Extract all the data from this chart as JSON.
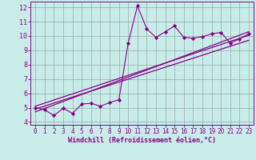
{
  "xlabel": "Windchill (Refroidissement éolien,°C)",
  "bg_color": "#c8ede8",
  "line_color": "#880088",
  "grid_color": "#99aaa8",
  "xlim": [
    -0.5,
    23.5
  ],
  "ylim": [
    3.8,
    12.4
  ],
  "xticks": [
    0,
    1,
    2,
    3,
    4,
    5,
    6,
    7,
    8,
    9,
    10,
    11,
    12,
    13,
    14,
    15,
    16,
    17,
    18,
    19,
    20,
    21,
    22,
    23
  ],
  "yticks": [
    4,
    5,
    6,
    7,
    8,
    9,
    10,
    11,
    12
  ],
  "jagged_x": [
    0,
    1,
    2,
    3,
    4,
    5,
    6,
    7,
    8,
    9,
    10,
    11,
    12,
    13,
    14,
    15,
    16,
    17,
    18,
    19,
    20,
    21,
    22,
    23
  ],
  "jagged_y": [
    5.0,
    4.85,
    4.45,
    4.95,
    4.6,
    5.25,
    5.3,
    5.1,
    5.35,
    5.55,
    9.5,
    12.1,
    10.5,
    9.9,
    10.3,
    10.7,
    9.9,
    9.85,
    9.95,
    10.15,
    10.25,
    9.5,
    9.8,
    10.15
  ],
  "line1_x": [
    0,
    23
  ],
  "line1_y": [
    4.7,
    10.3
  ],
  "line2_x": [
    0,
    23
  ],
  "line2_y": [
    4.9,
    9.7
  ],
  "line3_x": [
    0,
    23
  ],
  "line3_y": [
    5.1,
    10.05
  ]
}
